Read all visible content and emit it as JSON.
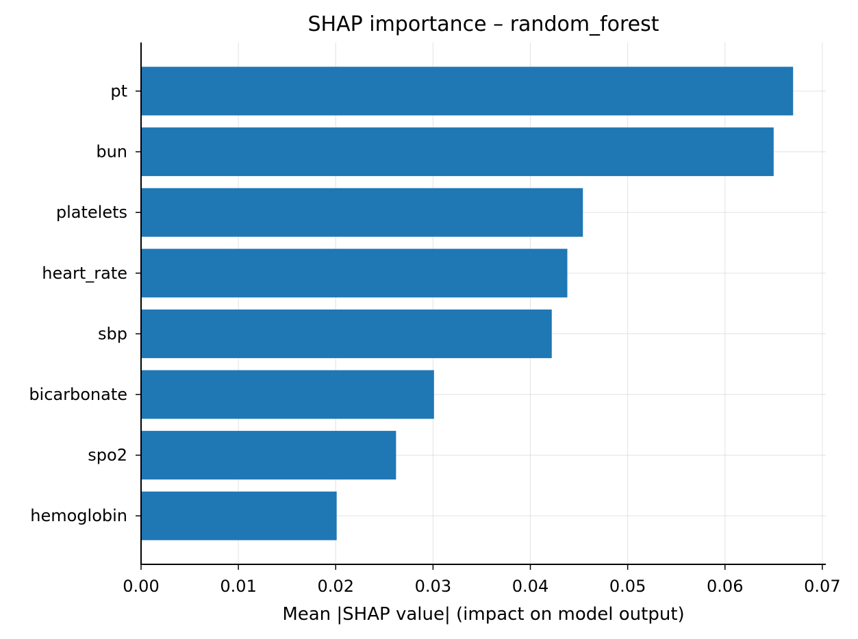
{
  "chart_data": {
    "type": "bar",
    "orientation": "horizontal",
    "title": "SHAP importance – random_forest",
    "xlabel": "Mean |SHAP value| (impact on model output)",
    "ylabel": "",
    "categories": [
      "pt",
      "bun",
      "platelets",
      "heart_rate",
      "sbp",
      "bicarbonate",
      "spo2",
      "hemoglobin"
    ],
    "values": [
      0.067,
      0.065,
      0.0454,
      0.0438,
      0.0422,
      0.0301,
      0.0262,
      0.0201
    ],
    "xlim": [
      0,
      0.07036
    ],
    "xticks": [
      0.0,
      0.01,
      0.02,
      0.03,
      0.04,
      0.05,
      0.06,
      0.07
    ],
    "xtick_labels": [
      "0.00",
      "0.01",
      "0.02",
      "0.03",
      "0.04",
      "0.05",
      "0.06",
      "0.07"
    ],
    "grid": true,
    "bar_color": "#1f77b4"
  }
}
